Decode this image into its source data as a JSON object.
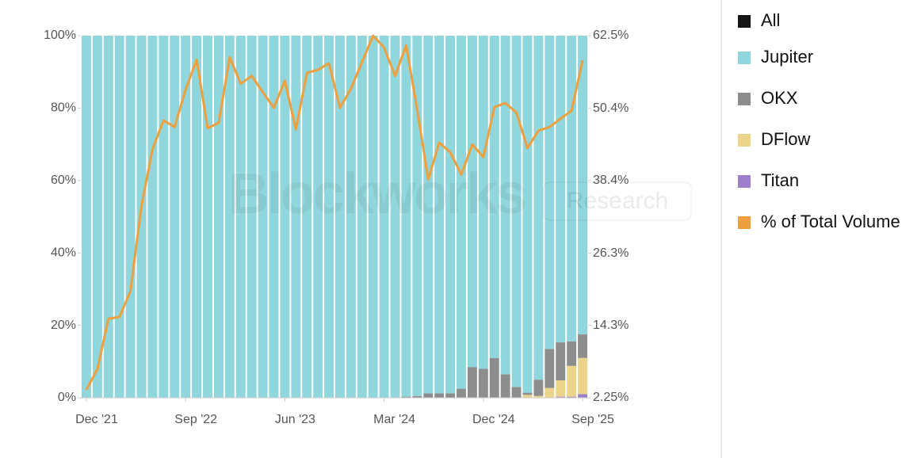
{
  "chart_data": {
    "type": "bar",
    "stacked": true,
    "watermark": [
      "Blockworks",
      "Research"
    ],
    "legend_extra": {
      "name": "All",
      "color": "#151515"
    },
    "categories": [
      "Dec '21",
      null,
      null,
      null,
      null,
      null,
      null,
      null,
      null,
      "Sep '22",
      null,
      null,
      null,
      null,
      null,
      null,
      null,
      null,
      "Jun '23",
      null,
      null,
      null,
      null,
      null,
      null,
      null,
      null,
      "Mar '24",
      null,
      null,
      null,
      null,
      null,
      null,
      null,
      null,
      "Dec '24",
      null,
      null,
      null,
      null,
      null,
      null,
      null,
      null,
      "Sep '25"
    ],
    "series": [
      {
        "name": "Jupiter",
        "color": "#8fd6dd",
        "values": [
          100,
          100,
          100,
          100,
          100,
          100,
          100,
          100,
          100,
          100,
          100,
          100,
          100,
          100,
          100,
          100,
          100,
          100,
          100,
          100,
          100,
          100,
          100,
          100,
          100,
          100,
          100,
          100,
          100,
          99.7,
          99.5,
          98.8,
          98.8,
          98.8,
          97.5,
          91.5,
          92,
          89,
          93.5,
          97,
          98.6,
          95,
          86.5,
          84.7,
          84.4,
          82.5
        ]
      },
      {
        "name": "OKX",
        "color": "#8d8d8d",
        "values": [
          0,
          0,
          0,
          0,
          0,
          0,
          0,
          0,
          0,
          0,
          0,
          0,
          0,
          0,
          0,
          0,
          0,
          0,
          0,
          0,
          0,
          0,
          0,
          0,
          0,
          0,
          0,
          0,
          0,
          0.3,
          0.5,
          1.2,
          1.2,
          1.2,
          2.5,
          8.5,
          8,
          11,
          6.5,
          3,
          0.6,
          4.5,
          10.8,
          10.5,
          6.8,
          6.5
        ]
      },
      {
        "name": "DFlow",
        "color": "#ecd58a",
        "values": [
          0,
          0,
          0,
          0,
          0,
          0,
          0,
          0,
          0,
          0,
          0,
          0,
          0,
          0,
          0,
          0,
          0,
          0,
          0,
          0,
          0,
          0,
          0,
          0,
          0,
          0,
          0,
          0,
          0,
          0,
          0,
          0,
          0,
          0,
          0,
          0,
          0,
          0,
          0,
          0,
          0.8,
          0.5,
          2.7,
          4.5,
          8.5,
          10
        ]
      },
      {
        "name": "Titan",
        "color": "#9c7fcb",
        "values": [
          0,
          0,
          0,
          0,
          0,
          0,
          0,
          0,
          0,
          0,
          0,
          0,
          0,
          0,
          0,
          0,
          0,
          0,
          0,
          0,
          0,
          0,
          0,
          0,
          0,
          0,
          0,
          0,
          0,
          0,
          0,
          0,
          0,
          0,
          0,
          0,
          0,
          0,
          0,
          0,
          0,
          0,
          0,
          0.3,
          0.3,
          1
        ]
      },
      {
        "name": "% of Total Volume",
        "type": "line",
        "axis": "y2",
        "color": "#ee9f3e",
        "values": [
          3.57,
          7.0,
          15.4,
          15.7,
          20.0,
          34.2,
          43.6,
          48.4,
          47.3,
          53.5,
          58.5,
          47.1,
          48.0,
          58.9,
          54.5,
          55.8,
          53.1,
          50.5,
          55.0,
          46.9,
          56.3,
          56.8,
          57.9,
          50.5,
          53.7,
          58.1,
          62.5,
          60.5,
          55.8,
          60.9,
          50.2,
          38.6,
          44.7,
          43.1,
          39.4,
          44.4,
          42.3,
          50.6,
          51.3,
          49.7,
          43.8,
          46.7,
          47.3,
          48.7,
          50.0,
          58.4
        ]
      }
    ],
    "ylim": [
      0,
      100
    ],
    "yticks": [
      {
        "value": 0,
        "label": "0%"
      },
      {
        "value": 20,
        "label": "20%"
      },
      {
        "value": 40,
        "label": "40%"
      },
      {
        "value": 60,
        "label": "60%"
      },
      {
        "value": 80,
        "label": "80%"
      },
      {
        "value": 100,
        "label": "100%"
      }
    ],
    "y2lim": [
      2.25,
      62.5
    ],
    "y2ticks": [
      {
        "value": 2.25,
        "label": "2.25%"
      },
      {
        "value": 14.3,
        "label": "14.3%"
      },
      {
        "value": 26.3,
        "label": "26.3%"
      },
      {
        "value": 38.4,
        "label": "38.4%"
      },
      {
        "value": 50.4,
        "label": "50.4%"
      },
      {
        "value": 62.5,
        "label": "62.5%"
      }
    ]
  }
}
